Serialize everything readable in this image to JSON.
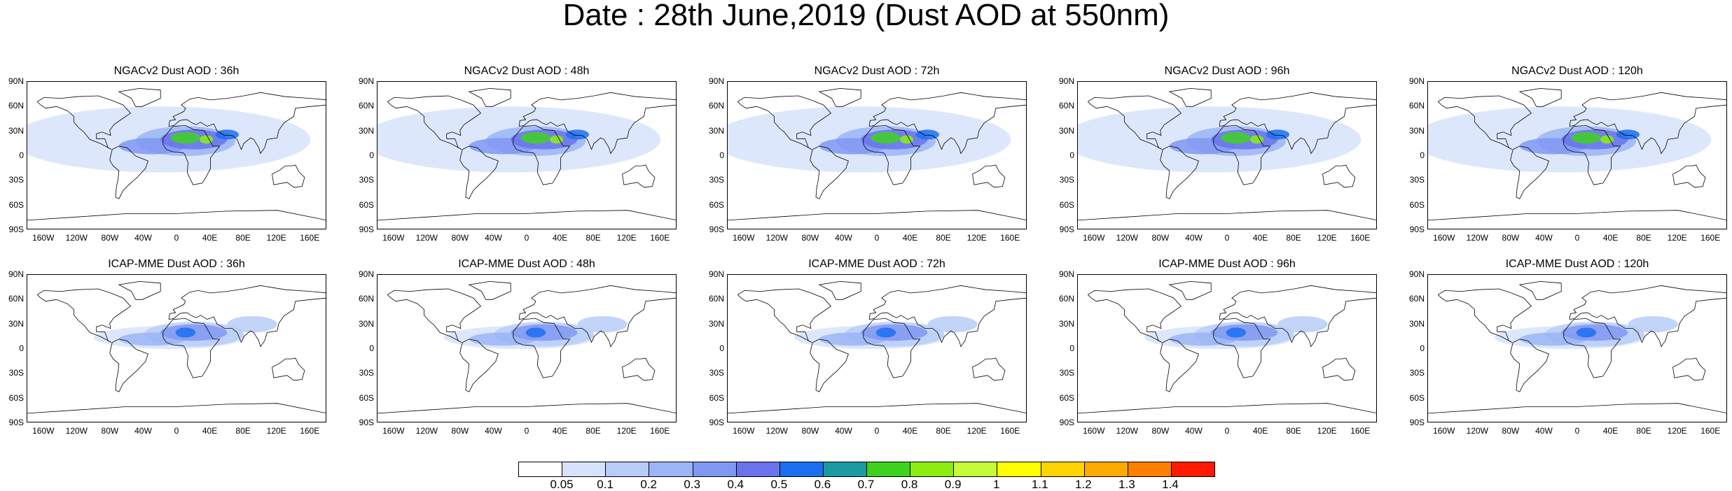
{
  "title": "Date : 28th June,2019 (Dust AOD at 550nm)",
  "lat_labels": [
    "90N",
    "60N",
    "30N",
    "0",
    "30S",
    "60S",
    "90S"
  ],
  "lon_labels": [
    "160W",
    "120W",
    "80W",
    "40W",
    "0",
    "40E",
    "80E",
    "120E",
    "160E"
  ],
  "panels": [
    {
      "title": "NGACv2 Dust AOD : 36h",
      "model": "NGACv2",
      "lead": "36h",
      "row": 0,
      "col": 0
    },
    {
      "title": "NGACv2 Dust AOD : 48h",
      "model": "NGACv2",
      "lead": "48h",
      "row": 0,
      "col": 1
    },
    {
      "title": "NGACv2 Dust AOD : 72h",
      "model": "NGACv2",
      "lead": "72h",
      "row": 0,
      "col": 2
    },
    {
      "title": "NGACv2 Dust AOD : 96h",
      "model": "NGACv2",
      "lead": "96h",
      "row": 0,
      "col": 3
    },
    {
      "title": "NGACv2 Dust AOD : 120h",
      "model": "NGACv2",
      "lead": "120h",
      "row": 0,
      "col": 4
    },
    {
      "title": "ICAP-MME Dust AOD : 36h",
      "model": "ICAP-MME",
      "lead": "36h",
      "row": 1,
      "col": 0
    },
    {
      "title": "ICAP-MME Dust AOD : 48h",
      "model": "ICAP-MME",
      "lead": "48h",
      "row": 1,
      "col": 1
    },
    {
      "title": "ICAP-MME Dust AOD : 72h",
      "model": "ICAP-MME",
      "lead": "72h",
      "row": 1,
      "col": 2
    },
    {
      "title": "ICAP-MME Dust AOD : 96h",
      "model": "ICAP-MME",
      "lead": "96h",
      "row": 1,
      "col": 3
    },
    {
      "title": "ICAP-MME Dust AOD : 120h",
      "model": "ICAP-MME",
      "lead": "120h",
      "row": 1,
      "col": 4
    }
  ],
  "colorbar": {
    "labels": [
      "0.05",
      "0.1",
      "0.2",
      "0.3",
      "0.4",
      "0.5",
      "0.6",
      "0.7",
      "0.8",
      "0.9",
      "1",
      "1.1",
      "1.2",
      "1.3",
      "1.4"
    ],
    "colors": [
      "#ffffff",
      "#d7e3fb",
      "#b8ccf8",
      "#9bb5f6",
      "#8098f2",
      "#6a73ec",
      "#1c6ef0",
      "#1a9aa2",
      "#3ed21e",
      "#8cee10",
      "#c6fb3a",
      "#ffff00",
      "#ffd400",
      "#ffaa00",
      "#ff7f00",
      "#ff1a00"
    ]
  }
}
